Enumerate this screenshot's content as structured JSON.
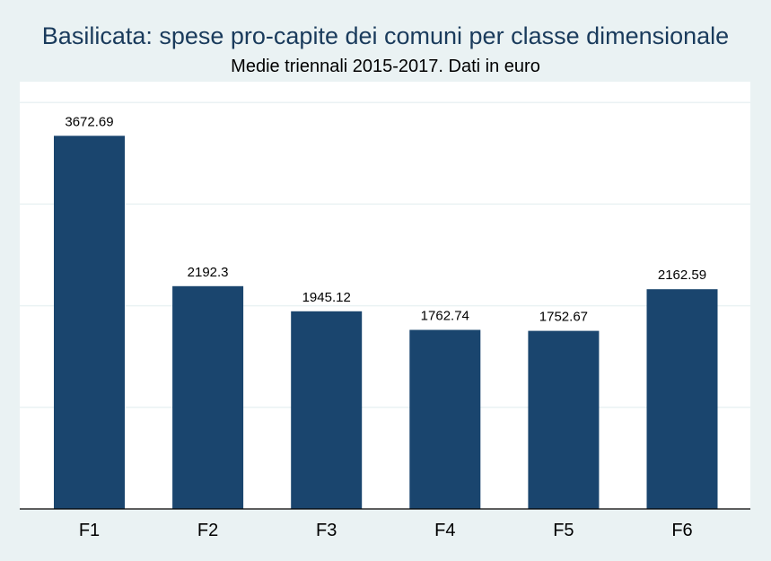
{
  "chart_data": {
    "type": "bar",
    "title": "Basilicata: spese pro-capite dei comuni per classe dimensionale",
    "subtitle": "Medie triennali 2015-2017. Dati in euro",
    "categories": [
      "F1",
      "F2",
      "F3",
      "F4",
      "F5",
      "F6"
    ],
    "values": [
      3672.69,
      2192.3,
      1945.12,
      1762.74,
      1752.67,
      2162.59
    ],
    "data_labels": [
      "3672.69",
      "2192.3",
      "1945.12",
      "1762.74",
      "1752.67",
      "2162.59"
    ],
    "ylim": [
      0,
      4000
    ],
    "yticks": [
      0,
      1000,
      2000,
      3000,
      4000
    ],
    "grid": true,
    "colors": {
      "bar": "#1a456e",
      "background": "#eaf2f3",
      "plot_background": "#ffffff",
      "grid": "#eaf2f3",
      "title": "#1a3b5c"
    }
  }
}
